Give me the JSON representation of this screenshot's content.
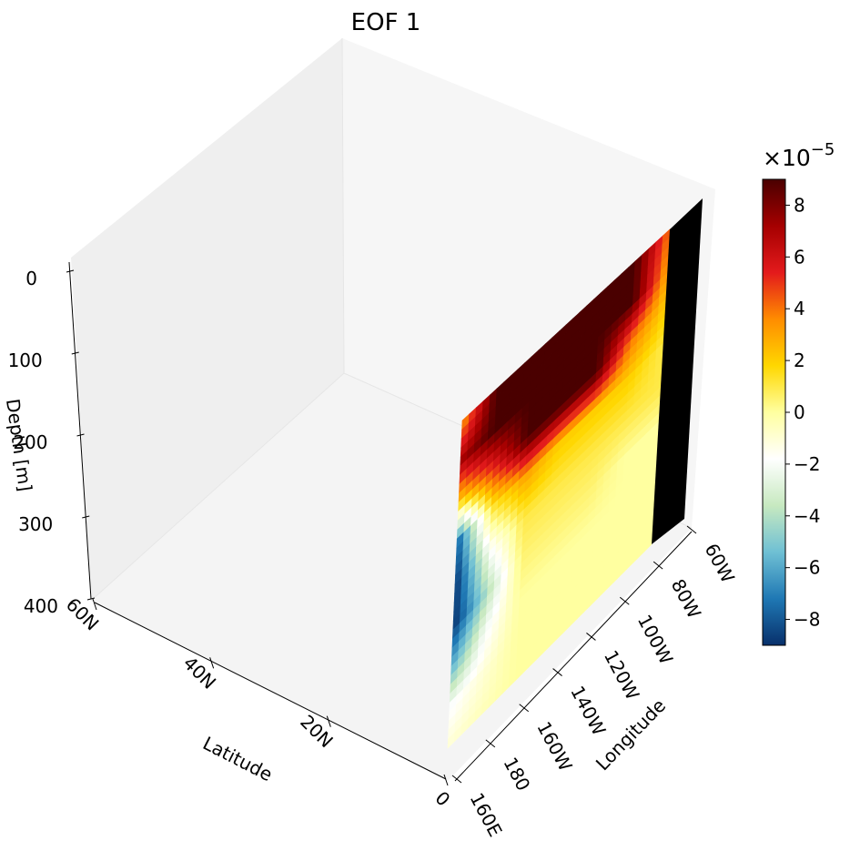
{
  "chart_data": {
    "type": "heatmap",
    "title": "EOF 1",
    "axes": {
      "depth": {
        "label": "Depth [m]",
        "ticks": [
          "0",
          "100",
          "200",
          "300",
          "400"
        ],
        "range": [
          0,
          400
        ]
      },
      "latitude": {
        "label": "Latitude",
        "ticks": [
          "60N",
          "40N",
          "20N",
          "0"
        ]
      },
      "longitude": {
        "label": "Longitude",
        "ticks": [
          "160E",
          "180",
          "160W",
          "140W",
          "120W",
          "100W",
          "80W",
          "60W"
        ]
      }
    },
    "colorbar": {
      "multiplier": "×10",
      "exponent": "−5",
      "range": [
        -9,
        9
      ],
      "ticks": [
        "8",
        "6",
        "4",
        "2",
        "0",
        "−2",
        "−4",
        "−6",
        "−8"
      ],
      "colormap": [
        "#08306b",
        "#1f78b4",
        "#6fc0d4",
        "#c7e9c0",
        "#ffffff",
        "#ffffa0",
        "#ffd700",
        "#ff8c00",
        "#e31a1c",
        "#a50000",
        "#4a0000"
      ]
    },
    "section": {
      "plane": "equator",
      "depth_levels": [
        0,
        50,
        100,
        150,
        200,
        250,
        300,
        350,
        400
      ],
      "longitudes": [
        "160E",
        "180",
        "160W",
        "140W",
        "120W",
        "100W",
        "80W"
      ],
      "values_x1e5": [
        [
          3,
          9,
          9,
          9,
          9,
          9,
          4
        ],
        [
          7,
          9,
          9,
          9,
          9,
          9,
          3
        ],
        [
          2,
          5,
          9,
          9,
          9,
          4,
          2
        ],
        [
          -8,
          1,
          3,
          2,
          2,
          2,
          1
        ],
        [
          -9,
          -2,
          1,
          1,
          1,
          1,
          1
        ],
        [
          -9,
          -4,
          0.5,
          0.5,
          0.5,
          0,
          0
        ],
        [
          -6,
          -2,
          0,
          0,
          0,
          0,
          0
        ],
        [
          -2,
          -1,
          0,
          0,
          0,
          0,
          0
        ],
        [
          -1,
          -0.5,
          0,
          0,
          0,
          0,
          0
        ]
      ],
      "land_mask": "east of 80W"
    }
  }
}
